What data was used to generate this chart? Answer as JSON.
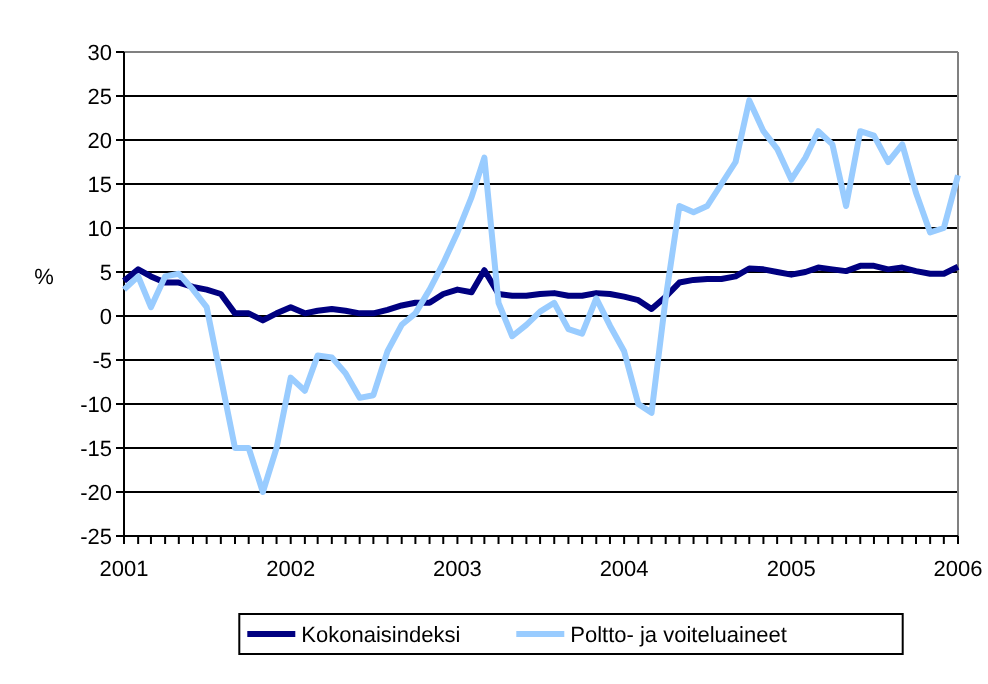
{
  "chart_data": {
    "type": "line",
    "ylabel": "%",
    "x": [
      "2001-01",
      "2001-02",
      "2001-03",
      "2001-04",
      "2001-05",
      "2001-06",
      "2001-07",
      "2001-08",
      "2001-09",
      "2001-10",
      "2001-11",
      "2001-12",
      "2002-01",
      "2002-02",
      "2002-03",
      "2002-04",
      "2002-05",
      "2002-06",
      "2002-07",
      "2002-08",
      "2002-09",
      "2002-10",
      "2002-11",
      "2002-12",
      "2003-01",
      "2003-02",
      "2003-03",
      "2003-04",
      "2003-05",
      "2003-06",
      "2003-07",
      "2003-08",
      "2003-09",
      "2003-10",
      "2003-11",
      "2003-12",
      "2004-01",
      "2004-02",
      "2004-03",
      "2004-04",
      "2004-05",
      "2004-06",
      "2004-07",
      "2004-08",
      "2004-09",
      "2004-10",
      "2004-11",
      "2004-12",
      "2005-01",
      "2005-02",
      "2005-03",
      "2005-04",
      "2005-05",
      "2005-06",
      "2005-07",
      "2005-08",
      "2005-09",
      "2005-10",
      "2005-11",
      "2005-12",
      "2006-01"
    ],
    "series": [
      {
        "name": "Kokonaisindeksi",
        "color": "#000080",
        "values": [
          4,
          5.3,
          4.5,
          3.8,
          3.8,
          3.3,
          3,
          2.5,
          0.3,
          0.3,
          -0.5,
          0.3,
          1,
          0.3,
          0.6,
          0.8,
          0.6,
          0.3,
          0.3,
          0.7,
          1.2,
          1.5,
          1.5,
          2.5,
          3,
          2.7,
          5.2,
          2.5,
          2.3,
          2.3,
          2.5,
          2.6,
          2.3,
          2.3,
          2.6,
          2.5,
          2.2,
          1.8,
          0.8,
          2.2,
          3.8,
          4.1,
          4.2,
          4.2,
          4.5,
          5.4,
          5.3,
          5,
          4.7,
          5,
          5.5,
          5.3,
          5.1,
          5.7,
          5.7,
          5.3,
          5.5,
          5.1,
          4.8,
          4.8,
          5.6
        ]
      },
      {
        "name": "Poltto- ja voiteluaineet",
        "color": "#99ccff",
        "values": [
          3,
          4.5,
          1,
          4.5,
          4.8,
          3,
          1,
          -7,
          -15,
          -15,
          -20,
          -15,
          -7,
          -8.5,
          -4.5,
          -4.7,
          -6.5,
          -9.3,
          -9,
          -4,
          -1,
          0.3,
          3,
          6,
          9.5,
          13.5,
          18,
          1.5,
          -2.3,
          -1,
          0.5,
          1.5,
          -1.5,
          -2,
          2,
          -1.1,
          -4,
          -10,
          -11,
          2,
          12.5,
          11.8,
          12.5,
          15,
          17.5,
          24.5,
          21,
          19,
          15.5,
          18,
          21,
          19.5,
          12.5,
          21,
          20.5,
          17.5,
          19.5,
          14,
          9.5,
          10,
          16
        ]
      }
    ],
    "xlim": [
      "2001-01",
      "2006-01"
    ],
    "xticks": [
      {
        "value": "2001-01",
        "label": "2001"
      },
      {
        "value": "2002-01",
        "label": "2002"
      },
      {
        "value": "2003-01",
        "label": "2003"
      },
      {
        "value": "2004-01",
        "label": "2004"
      },
      {
        "value": "2005-01",
        "label": "2005"
      },
      {
        "value": "2006-01",
        "label": "2006"
      }
    ],
    "ylim": [
      -25,
      30
    ],
    "yticks": [
      -25,
      -20,
      -15,
      -10,
      -5,
      0,
      5,
      10,
      15,
      20,
      25,
      30
    ],
    "grid": "y",
    "legend": "bottom",
    "marker": "none",
    "line_style": "solid"
  }
}
